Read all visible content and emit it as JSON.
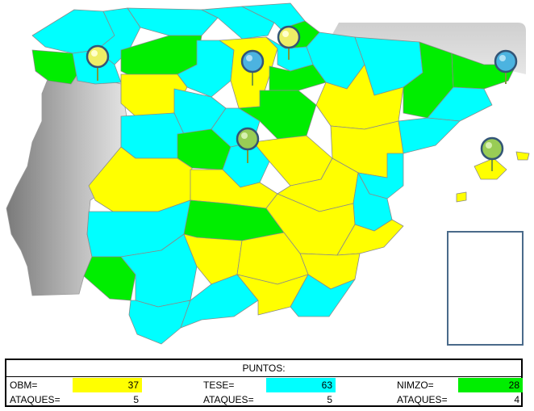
{
  "colors": {
    "OBM": "#ffff00",
    "TESE": "#00ffff",
    "NIMZO": "#00ee00",
    "sea_panel": "#d4d4d4",
    "portugal": "#a8a8a8"
  },
  "map": {
    "provinces_obm": 15,
    "provinces_tese": 25,
    "provinces_nimzo": 9,
    "pins": [
      {
        "name": "galicia-pin",
        "color": "yellow"
      },
      {
        "name": "cantabria-pin",
        "color": "yellow"
      },
      {
        "name": "burgos-pin",
        "color": "blue"
      },
      {
        "name": "cataluna-pin",
        "color": "blue"
      },
      {
        "name": "madrid-pin",
        "color": "green"
      },
      {
        "name": "baleares-pin",
        "color": "green"
      }
    ]
  },
  "score": {
    "title": "PUNTOS:",
    "players": [
      {
        "label": "OBM=",
        "points": "37",
        "attacks_label": "ATAQUES=",
        "attacks": "5"
      },
      {
        "label": "TESE=",
        "points": "63",
        "attacks_label": "ATAQUES=",
        "attacks": "5"
      },
      {
        "label": "NIMZO=",
        "points": "28",
        "attacks_label": "ATAQUES=",
        "attacks": "4"
      }
    ]
  }
}
